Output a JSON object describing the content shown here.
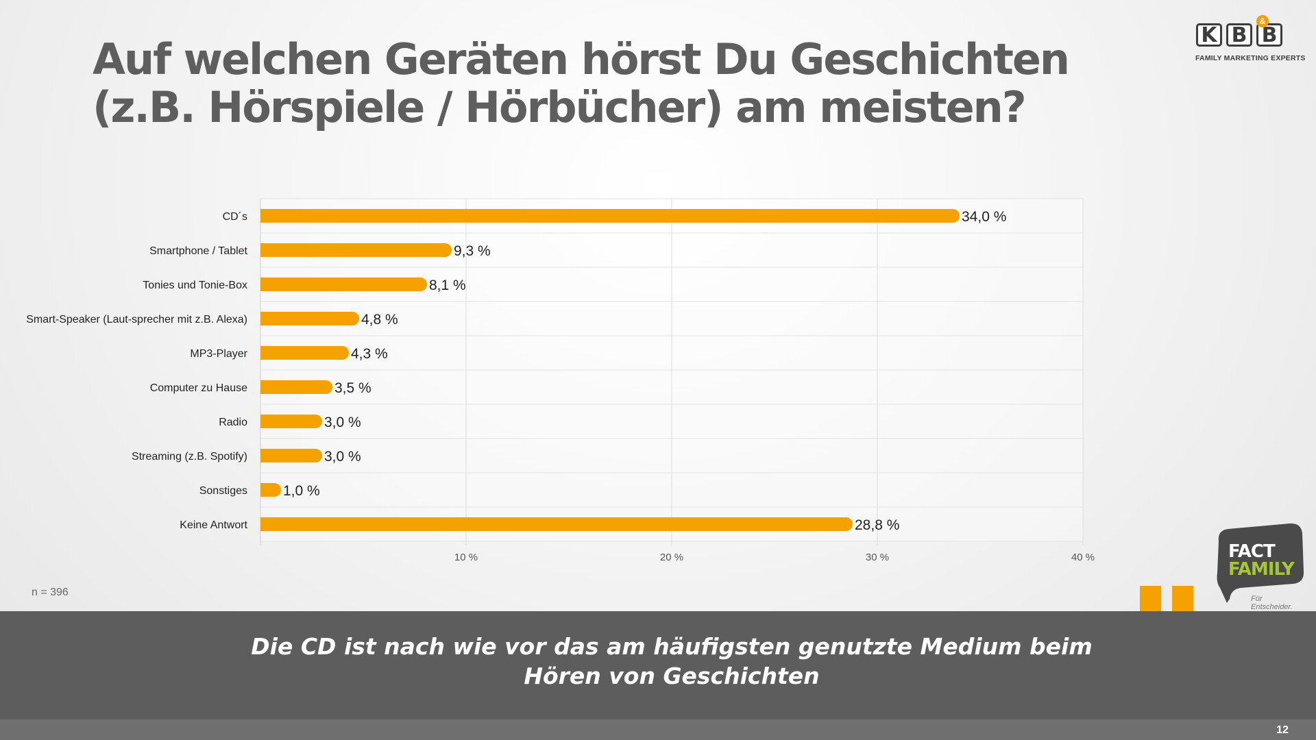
{
  "title": "Auf welchen Geräten hörst Du Geschichten (z.B. Hörspiele / Hörbücher) am meisten?",
  "logo": {
    "letters": [
      "K",
      "B",
      "B"
    ],
    "ampersand": "&",
    "tagline": "FAMILY MARKETING EXPERTS"
  },
  "chart_data": {
    "type": "bar",
    "orientation": "horizontal",
    "categories": [
      "CD´s",
      "Smartphone / Tablet",
      "Tonies und Tonie-Box",
      "Smart-Speaker (Laut-sprecher mit z.B. Alexa)",
      "MP3-Player",
      "Computer zu Hause",
      "Radio",
      "Streaming (z.B. Spotify)",
      "Sonstiges",
      "Keine Antwort"
    ],
    "values": [
      34.0,
      9.3,
      8.1,
      4.8,
      4.3,
      3.5,
      3.0,
      3.0,
      1.0,
      28.8
    ],
    "data_labels": [
      "34,0 %",
      "9,3 %",
      "8,1 %",
      "4,8 %",
      "4,3 %",
      "3,5 %",
      "3,0 %",
      "3,0 %",
      "1,0 %",
      "28,8 %"
    ],
    "xlim": [
      0,
      40
    ],
    "x_ticks": [
      10,
      20,
      30,
      40
    ],
    "x_tick_labels": [
      "10 %",
      "20 %",
      "30 %",
      "40 %"
    ],
    "grid": true,
    "bar_color": "#f5a100"
  },
  "sample_note": "n = 396",
  "conclusion": "Die CD ist nach wie vor das am häufigsten genutzte Medium beim Hören von Geschichten",
  "fact_family": {
    "line1": "FACT",
    "line2": "FAMILY",
    "tagline": "Für Entscheider."
  },
  "page_number": "12",
  "colors": {
    "accent": "#f5a100",
    "band": "#5d5d5d",
    "fact_green": "#a6c53a",
    "title": "#5e5e5e"
  }
}
